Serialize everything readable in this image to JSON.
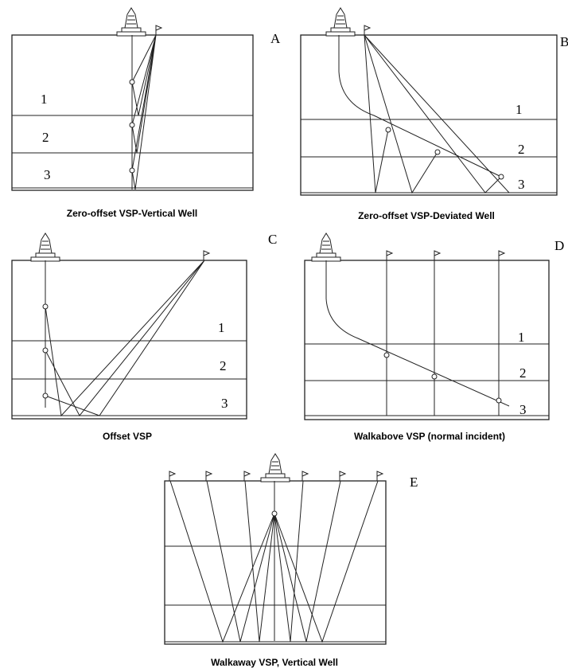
{
  "panels": [
    {
      "letter": "A",
      "caption": "Zero-offset VSP-Vertical Well",
      "layers": [
        "1",
        "2",
        "3"
      ]
    },
    {
      "letter": "B",
      "caption": "Zero-offset VSP-Deviated Well",
      "layers": [
        "1",
        "2",
        "3"
      ]
    },
    {
      "letter": "C",
      "caption": "Offset VSP",
      "layers": [
        "1",
        "2",
        "3"
      ]
    },
    {
      "letter": "D",
      "caption": "Walkabove VSP (normal incident)",
      "layers": [
        "1",
        "2",
        "3"
      ]
    },
    {
      "letter": "E",
      "caption": "Walkaway VSP, Vertical Well"
    }
  ]
}
